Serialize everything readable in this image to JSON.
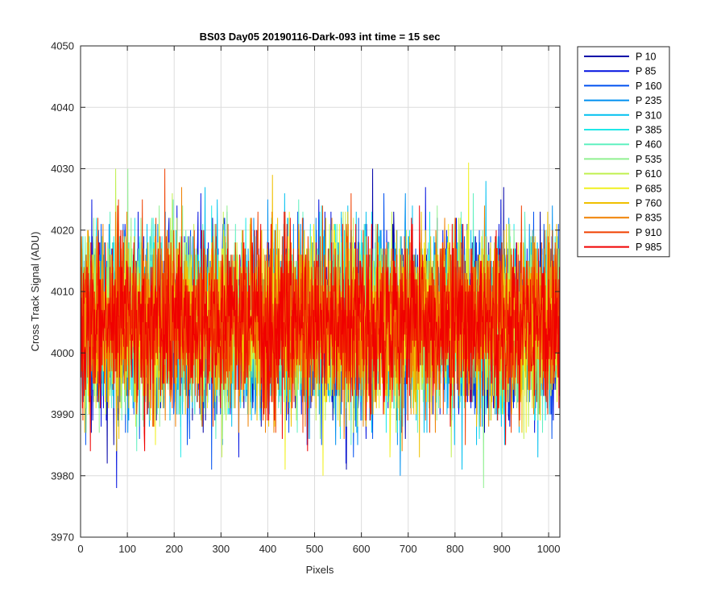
{
  "chart_data": {
    "type": "line",
    "title": "BS03 Day05 20190116-Dark-093 int time = 15 sec",
    "xlabel": "Pixels",
    "ylabel": "Cross Track Signal (ADU)",
    "xlim": [
      0,
      1024
    ],
    "ylim": [
      3970,
      4050
    ],
    "x_ticks": [
      0,
      100,
      200,
      300,
      400,
      500,
      600,
      700,
      800,
      900,
      1000
    ],
    "y_ticks": [
      3970,
      3980,
      3990,
      4000,
      4010,
      4020,
      4030,
      4040,
      4050
    ],
    "grid": true,
    "legend_position": "outside-top-right",
    "x_points": 1024,
    "noise_mean": 4005,
    "noise_sd": 7,
    "series": [
      {
        "name": "P 10",
        "color": "#0000a8"
      },
      {
        "name": "P 85",
        "color": "#0010e0"
      },
      {
        "name": "P 160",
        "color": "#0050f0"
      },
      {
        "name": "P 235",
        "color": "#0090f0"
      },
      {
        "name": "P 310",
        "color": "#00c0f0"
      },
      {
        "name": "P 385",
        "color": "#20e8e8"
      },
      {
        "name": "P 460",
        "color": "#60f0c0"
      },
      {
        "name": "P 535",
        "color": "#90f090"
      },
      {
        "name": "P 610",
        "color": "#c0f050"
      },
      {
        "name": "P 685",
        "color": "#f0f020"
      },
      {
        "name": "P 760",
        "color": "#f0c000"
      },
      {
        "name": "P 835",
        "color": "#f08000"
      },
      {
        "name": "P 910",
        "color": "#f04000"
      },
      {
        "name": "P 985",
        "color": "#f00000"
      }
    ]
  }
}
